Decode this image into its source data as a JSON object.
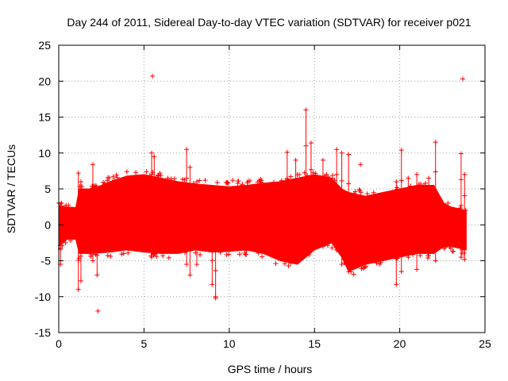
{
  "chart_data": {
    "type": "scatter",
    "title": "Day 244 of 2011, Sidereal Day-to-day VTEC variation (SDTVAR) for receiver p021",
    "xlabel": "GPS time / hours",
    "ylabel": "SDTVAR / TECUs",
    "xlim": [
      0,
      25
    ],
    "ylim": [
      -15,
      25
    ],
    "x_ticks": [
      0,
      5,
      10,
      15,
      20,
      25
    ],
    "y_ticks": [
      -15,
      -10,
      -5,
      0,
      5,
      10,
      15,
      20,
      25
    ],
    "x_tick_labels": [
      "0",
      "5",
      "10",
      "15",
      "20",
      "25"
    ],
    "y_tick_labels": [
      "-15",
      "-10",
      "-5",
      "0",
      "5",
      "10",
      "15",
      "20",
      "25"
    ],
    "grid": true,
    "marker": "+",
    "series_color": "#ff0000",
    "data_x_range": [
      0,
      23.9
    ],
    "envelope": {
      "x": [
        0.0,
        0.5,
        1.0,
        1.2,
        2.0,
        3.0,
        4.0,
        5.0,
        6.0,
        7.0,
        8.0,
        9.0,
        10.0,
        11.0,
        12.0,
        13.0,
        14.0,
        15.0,
        16.0,
        16.6,
        17.0,
        18.0,
        19.0,
        20.0,
        21.0,
        22.0,
        22.6,
        23.0,
        23.9
      ],
      "upper": [
        2.7,
        2.5,
        2.4,
        5.0,
        5.0,
        6.0,
        6.8,
        7.0,
        6.5,
        6.0,
        5.7,
        5.5,
        5.3,
        5.5,
        5.8,
        6.0,
        6.5,
        7.0,
        6.5,
        5.0,
        4.5,
        4.0,
        4.5,
        5.0,
        5.5,
        5.5,
        3.0,
        2.5,
        2.0
      ],
      "lower": [
        -3.0,
        -2.0,
        -2.0,
        -4.0,
        -4.0,
        -3.8,
        -3.5,
        -3.8,
        -4.0,
        -4.0,
        -3.5,
        -3.8,
        -3.7,
        -3.5,
        -4.0,
        -5.0,
        -5.5,
        -3.5,
        -2.5,
        -4.5,
        -6.5,
        -5.5,
        -5.0,
        -4.5,
        -4.0,
        -4.0,
        -3.0,
        -3.0,
        -3.5
      ]
    },
    "spikes": [
      {
        "x": 0.1,
        "low": -5.5,
        "high": 2.9
      },
      {
        "x": 1.15,
        "low": -9.0,
        "high": 7.2
      },
      {
        "x": 1.3,
        "low": -7.8,
        "high": 6.0
      },
      {
        "x": 2.0,
        "low": -5.0,
        "high": 8.4
      },
      {
        "x": 2.25,
        "low": -7.0,
        "high": 4.0
      },
      {
        "x": 5.45,
        "low": -4.5,
        "high": 10.0
      },
      {
        "x": 5.6,
        "low": -4.0,
        "high": 9.5
      },
      {
        "x": 7.5,
        "low": -5.5,
        "high": 10.5
      },
      {
        "x": 7.7,
        "low": -7.0,
        "high": 8.0
      },
      {
        "x": 8.1,
        "low": -5.5,
        "high": 6.0
      },
      {
        "x": 9.0,
        "low": -8.3,
        "high": 5.0
      },
      {
        "x": 9.2,
        "low": -10.0,
        "high": 4.5
      },
      {
        "x": 13.4,
        "low": -4.5,
        "high": 10.1
      },
      {
        "x": 13.9,
        "low": -4.0,
        "high": 9.0
      },
      {
        "x": 14.5,
        "low": -4.0,
        "high": 16.0
      },
      {
        "x": 14.8,
        "low": -3.5,
        "high": 11.4
      },
      {
        "x": 15.5,
        "low": -3.0,
        "high": 9.0
      },
      {
        "x": 16.3,
        "low": -3.5,
        "high": 10.5
      },
      {
        "x": 16.6,
        "low": -5.5,
        "high": 10.0
      },
      {
        "x": 17.0,
        "low": -6.5,
        "high": 9.8
      },
      {
        "x": 19.8,
        "low": -8.3,
        "high": 6.0
      },
      {
        "x": 20.1,
        "low": -6.5,
        "high": 10.4
      },
      {
        "x": 20.5,
        "low": -4.5,
        "high": 6.5
      },
      {
        "x": 21.0,
        "low": -6.2,
        "high": 7.0
      },
      {
        "x": 21.7,
        "low": -4.0,
        "high": 6.5
      },
      {
        "x": 22.1,
        "low": -5.0,
        "high": 11.5
      },
      {
        "x": 23.6,
        "low": -4.5,
        "high": 9.9
      },
      {
        "x": 23.8,
        "low": -4.8,
        "high": 7.0
      }
    ],
    "outliers": [
      {
        "x": 5.5,
        "y": 20.7
      },
      {
        "x": 23.7,
        "y": 20.3
      },
      {
        "x": 2.3,
        "y": -12.0
      },
      {
        "x": 9.2,
        "y": -10.2
      },
      {
        "x": 17.7,
        "y": 8.4
      },
      {
        "x": 6.4,
        "y": 6.5
      },
      {
        "x": 10.2,
        "y": 6.2
      }
    ]
  }
}
